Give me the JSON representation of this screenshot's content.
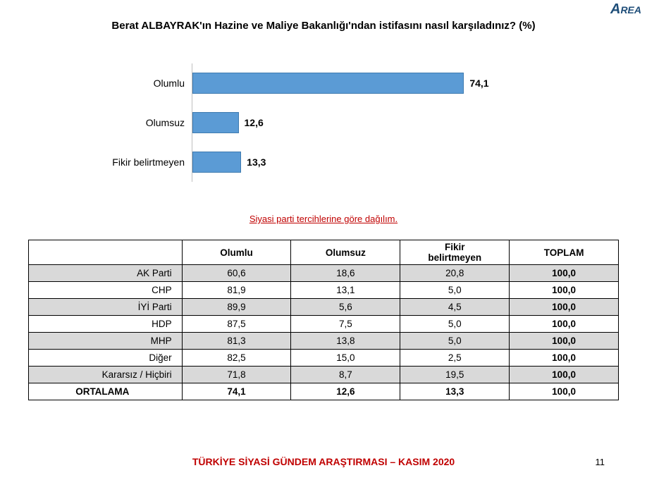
{
  "logo_text": "REA",
  "title": "Berat ALBAYRAK'ın Hazine ve Maliye Bakanlığı'ndan istifasını nasıl karşıladınız? (%)",
  "chart": {
    "type": "bar-horizontal",
    "max": 100,
    "bar_color": "#5b9bd5",
    "bar_border_color": "#3f7bb0",
    "axis_color": "#bfbfbf",
    "label_fontsize": 14,
    "value_fontsize": 14,
    "value_fontweight": "700",
    "items": [
      {
        "label": "Olumlu",
        "value_text": "74,1",
        "value": 74.1
      },
      {
        "label": "Olumsuz",
        "value_text": "12,6",
        "value": 12.6
      },
      {
        "label": "Fikir belirtmeyen",
        "value_text": "13,3",
        "value": 13.3
      }
    ]
  },
  "subheading": "Siyasi parti tercihlerine göre dağılım.",
  "table": {
    "columns": [
      "",
      "Olumlu",
      "Olumsuz",
      "Fikir belirtmeyen",
      "TOPLAM"
    ],
    "col_widths_pct": [
      26,
      18.5,
      18.5,
      18.5,
      18.5
    ],
    "row_alt_bg": "#d9d9d9",
    "border_color": "#000000",
    "fontsize": 13.5,
    "rows": [
      {
        "label": "AK Parti",
        "cells": [
          "60,6",
          "18,6",
          "20,8",
          "100,0"
        ]
      },
      {
        "label": "CHP",
        "cells": [
          "81,9",
          "13,1",
          "5,0",
          "100,0"
        ]
      },
      {
        "label": "İYİ Parti",
        "cells": [
          "89,9",
          "5,6",
          "4,5",
          "100,0"
        ]
      },
      {
        "label": "HDP",
        "cells": [
          "87,5",
          "7,5",
          "5,0",
          "100,0"
        ]
      },
      {
        "label": "MHP",
        "cells": [
          "81,3",
          "13,8",
          "5,0",
          "100,0"
        ]
      },
      {
        "label": "Diğer",
        "cells": [
          "82,5",
          "15,0",
          "2,5",
          "100,0"
        ]
      },
      {
        "label": "Kararsız / Hiçbiri",
        "cells": [
          "71,8",
          "8,7",
          "19,5",
          "100,0"
        ]
      }
    ],
    "average": {
      "label": "ORTALAMA",
      "cells": [
        "74,1",
        "12,6",
        "13,3",
        "100,0"
      ]
    }
  },
  "footer": "TÜRKİYE SİYASİ GÜNDEM ARAŞTIRMASI – KASIM 2020",
  "page_number": "11",
  "colors": {
    "accent_red": "#c00000",
    "text": "#000000",
    "logo_blue": "#1f4e79"
  }
}
